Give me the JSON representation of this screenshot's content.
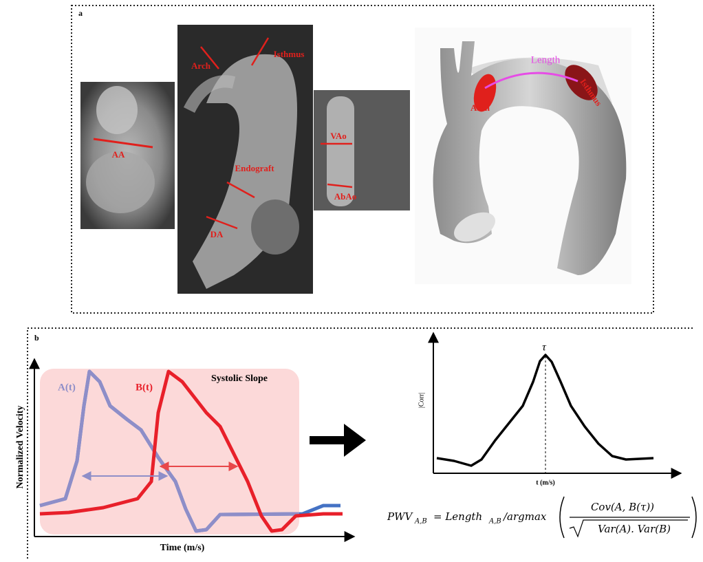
{
  "panel_a": {
    "label": "a",
    "mri_labels": {
      "aa": "AA",
      "arch": "Arch",
      "isthmus": "Isthmus",
      "endograft": "Endograft",
      "da": "DA",
      "vao": "VAo",
      "abao": "AbAo"
    },
    "model_labels": {
      "length": "Length",
      "arch": "Arch",
      "isthmus": "Isthmus"
    }
  },
  "panel_b": {
    "label": "b",
    "velocity_plot": {
      "series_a": "A(t)",
      "series_b": "B(t)",
      "region": "Systolic Slope",
      "y_label": "Normalized Velocity",
      "x_label": "Time (m/s)"
    },
    "corr_plot": {
      "peak": "τ",
      "y_label": "|Corr|",
      "x_label": "t (m/s)"
    },
    "formula": {
      "lhs": "PWV",
      "lhs_sub": "A,B",
      "length": "= Length",
      "length_sub": "A,B",
      "argmax": "/argmax",
      "numerator": "Cov(A, B(τ))",
      "denominator": "Var(A). Var(B)"
    }
  }
}
